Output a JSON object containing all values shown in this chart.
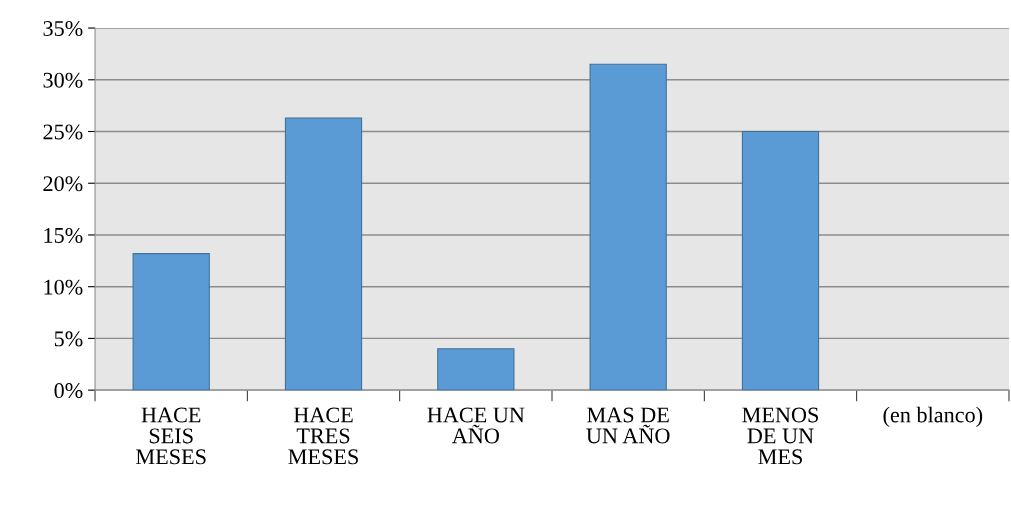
{
  "chart_data": {
    "type": "bar",
    "categories": [
      "HACE\nSEIS\nMESES",
      "HACE\nTRES\nMESES",
      "HACE UN\nAÑO",
      "MAS DE\nUN AÑO",
      "MENOS\nDE UN\nMES",
      "(en blanco)"
    ],
    "values": [
      13.2,
      26.3,
      4.0,
      31.5,
      25.0,
      0
    ],
    "color": "#5b9bd5",
    "ylim": [
      0,
      35
    ],
    "yticks": [
      {
        "value": 0,
        "label": "0%"
      },
      {
        "value": 5,
        "label": "5%"
      },
      {
        "value": 10,
        "label": "10%"
      },
      {
        "value": 15,
        "label": "15%"
      },
      {
        "value": 20,
        "label": "20%"
      },
      {
        "value": 25,
        "label": "25%"
      },
      {
        "value": 30,
        "label": "30%"
      },
      {
        "value": 35,
        "label": "35%"
      }
    ],
    "grid": "y",
    "legend": false
  }
}
